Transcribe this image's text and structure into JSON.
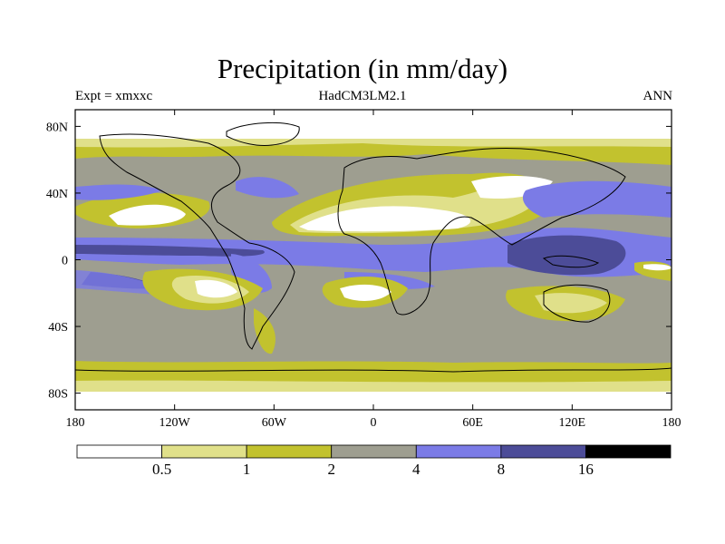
{
  "title": "Precipitation (in mm/day)",
  "subtitle_left": "Expt = xmxxc",
  "subtitle_center": "HadCM3LM2.1",
  "subtitle_right": "ANN",
  "map": {
    "projection": "cylindrical-equidistant",
    "lon_range": [
      -180,
      180
    ],
    "lat_range": [
      -90,
      90
    ],
    "lat_ticks": [
      {
        "v": 80,
        "label": "80N"
      },
      {
        "v": 40,
        "label": "40N"
      },
      {
        "v": 0,
        "label": "0"
      },
      {
        "v": -40,
        "label": "40S"
      },
      {
        "v": -80,
        "label": "80S"
      }
    ],
    "lon_ticks": [
      {
        "v": -180,
        "label": "180"
      },
      {
        "v": -120,
        "label": "120W"
      },
      {
        "v": -60,
        "label": "60W"
      },
      {
        "v": 0,
        "label": "0"
      },
      {
        "v": 60,
        "label": "60E"
      },
      {
        "v": 120,
        "label": "120E"
      },
      {
        "v": 180,
        "label": "180"
      }
    ]
  },
  "colorbar": {
    "levels": [
      "0.5",
      "1",
      "2",
      "4",
      "8",
      "16"
    ],
    "colors": [
      "#ffffff",
      "#e0e08a",
      "#c2c22e",
      "#9e9e90",
      "#7b7be6",
      "#4c4c98",
      "#000000"
    ]
  }
}
